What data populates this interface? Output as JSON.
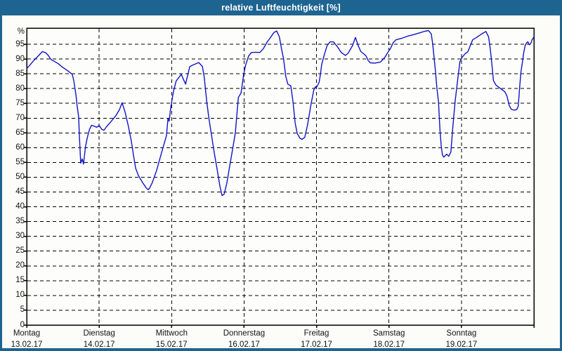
{
  "window": {
    "title": "relative Luftfeuchtigkeit [%]",
    "title_bar_color": "#1e6491",
    "border_color": "#1e6491",
    "content_background": "#fcfdf8"
  },
  "chart_data": {
    "type": "line",
    "title": "relative Luftfeuchtigkeit [%]",
    "xlabel": "",
    "ylabel": "%",
    "y_unit_label": "%",
    "ylim": [
      0,
      100
    ],
    "y_ticks": [
      0,
      5,
      10,
      15,
      20,
      25,
      30,
      35,
      40,
      45,
      50,
      55,
      60,
      65,
      70,
      75,
      80,
      85,
      90,
      95
    ],
    "x_unit": "hours_since_monday_00",
    "xlim_hours": [
      0,
      168
    ],
    "grid": "dashed-black",
    "legend_position": "none",
    "line_color": "#1212c8",
    "frame_color": "#000000",
    "plot_fill": "#fdfefb",
    "categories": [
      {
        "label": "Montag",
        "date": "13.02.17"
      },
      {
        "label": "Dienstag",
        "date": "14.02.17"
      },
      {
        "label": "Mittwoch",
        "date": "15.02.17"
      },
      {
        "label": "Donnerstag",
        "date": "16.02.17"
      },
      {
        "label": "Freitag",
        "date": "17.02.17"
      },
      {
        "label": "Samstag",
        "date": "18.02.17"
      },
      {
        "label": "Sonntag",
        "date": "19.02.17"
      }
    ],
    "series": [
      {
        "name": "relative Luftfeuchtigkeit",
        "points": [
          [
            0,
            86.7
          ],
          [
            1.6,
            88.6
          ],
          [
            2.8,
            90
          ],
          [
            4,
            91.2
          ],
          [
            5.2,
            92.5
          ],
          [
            6.3,
            92.1
          ],
          [
            7,
            91.4
          ],
          [
            8.1,
            89.8
          ],
          [
            9.3,
            89.1
          ],
          [
            10.5,
            88.4
          ],
          [
            11.6,
            87.4
          ],
          [
            12.8,
            86.6
          ],
          [
            14,
            85.7
          ],
          [
            15.1,
            84.8
          ],
          [
            15.6,
            82.7
          ],
          [
            16.3,
            77.9
          ],
          [
            16.7,
            74.1
          ],
          [
            17.2,
            70.5
          ],
          [
            17.5,
            63
          ],
          [
            17.9,
            54.8
          ],
          [
            18.4,
            56.2
          ],
          [
            18.8,
            54.4
          ],
          [
            19.5,
            60.5
          ],
          [
            20.1,
            63.5
          ],
          [
            20.8,
            66.2
          ],
          [
            21.5,
            67.6
          ],
          [
            22.3,
            67.3
          ],
          [
            23.2,
            66.9
          ],
          [
            24,
            67.5
          ],
          [
            24.9,
            66.2
          ],
          [
            25.6,
            65.9
          ],
          [
            26.5,
            67.2
          ],
          [
            27.9,
            68.8
          ],
          [
            29.5,
            70.8
          ],
          [
            30.7,
            72.8
          ],
          [
            31.6,
            75.2
          ],
          [
            32.6,
            72
          ],
          [
            33.7,
            67.2
          ],
          [
            34.7,
            62
          ],
          [
            35.4,
            57.3
          ],
          [
            36.1,
            53
          ],
          [
            37,
            50.6
          ],
          [
            38.4,
            48.2
          ],
          [
            39.5,
            46.5
          ],
          [
            40.2,
            45.8
          ],
          [
            40.7,
            46.3
          ],
          [
            41.6,
            48.2
          ],
          [
            43,
            52.2
          ],
          [
            44.7,
            58.4
          ],
          [
            46.3,
            64.1
          ],
          [
            46.8,
            69.8
          ],
          [
            47.2,
            69
          ],
          [
            47.7,
            73.5
          ],
          [
            48.6,
            79
          ],
          [
            49.5,
            82.5
          ],
          [
            51.2,
            84.8
          ],
          [
            52.6,
            81.5
          ],
          [
            54,
            87.4
          ],
          [
            55.1,
            88
          ],
          [
            57,
            88.8
          ],
          [
            58.2,
            87.5
          ],
          [
            58.8,
            83.9
          ],
          [
            59.6,
            76
          ],
          [
            60.3,
            70.4
          ],
          [
            61,
            65.6
          ],
          [
            62.1,
            58.4
          ],
          [
            63.1,
            52.5
          ],
          [
            64,
            47
          ],
          [
            64.7,
            43.8
          ],
          [
            65.4,
            44.3
          ],
          [
            66.3,
            48
          ],
          [
            67.2,
            53.5
          ],
          [
            68.2,
            59.5
          ],
          [
            69.1,
            65
          ],
          [
            69.6,
            71
          ],
          [
            70.1,
            77
          ],
          [
            71,
            78.5
          ],
          [
            71.9,
            85
          ],
          [
            72.6,
            88.2
          ],
          [
            73.5,
            91
          ],
          [
            74.4,
            92.2
          ],
          [
            76.1,
            92.3
          ],
          [
            77.2,
            92.2
          ],
          [
            78.4,
            93.5
          ],
          [
            79.6,
            95.7
          ],
          [
            80.7,
            97.2
          ],
          [
            81.9,
            99
          ],
          [
            82.8,
            99.5
          ],
          [
            83.7,
            97.5
          ],
          [
            84.4,
            93.5
          ],
          [
            85.1,
            90
          ],
          [
            85.8,
            84.2
          ],
          [
            86.5,
            81.5
          ],
          [
            87.5,
            80.9
          ],
          [
            88.2,
            75.5
          ],
          [
            88.9,
            68.4
          ],
          [
            89.6,
            64.8
          ],
          [
            90.5,
            63.2
          ],
          [
            91.2,
            62.8
          ],
          [
            92.1,
            63.5
          ],
          [
            93,
            67.6
          ],
          [
            94.2,
            74.8
          ],
          [
            95.1,
            79.5
          ],
          [
            95.6,
            80.6
          ],
          [
            95.9,
            80.2
          ],
          [
            96.3,
            81
          ],
          [
            96.9,
            82.2
          ],
          [
            97.3,
            85
          ],
          [
            97.7,
            88.1
          ],
          [
            98.6,
            91.5
          ],
          [
            99.5,
            94.5
          ],
          [
            100.5,
            95.8
          ],
          [
            101.6,
            95.8
          ],
          [
            102.8,
            94.3
          ],
          [
            104.2,
            92.2
          ],
          [
            105.6,
            91.2
          ],
          [
            106.5,
            92
          ],
          [
            107.9,
            94.5
          ],
          [
            108.9,
            97.3
          ],
          [
            109.8,
            94.5
          ],
          [
            110.7,
            92.5
          ],
          [
            111.6,
            91.8
          ],
          [
            112.4,
            91
          ],
          [
            113.1,
            89.5
          ],
          [
            113.8,
            88.7
          ],
          [
            115.4,
            88.6
          ],
          [
            117.2,
            89
          ],
          [
            118.6,
            90.5
          ],
          [
            119.6,
            92.2
          ],
          [
            120.5,
            93.6
          ],
          [
            121.4,
            95.5
          ],
          [
            122.3,
            96.5
          ],
          [
            124.2,
            97
          ],
          [
            126.1,
            97.7
          ],
          [
            128.4,
            98.3
          ],
          [
            130.3,
            98.9
          ],
          [
            131.9,
            99.4
          ],
          [
            133.1,
            99.6
          ],
          [
            134,
            98.5
          ],
          [
            134.5,
            95
          ],
          [
            134.9,
            91
          ],
          [
            135.4,
            85.8
          ],
          [
            135.9,
            80
          ],
          [
            136.4,
            75.5
          ],
          [
            136.9,
            66
          ],
          [
            137.3,
            60.5
          ],
          [
            137.7,
            57.5
          ],
          [
            138.2,
            56.8
          ],
          [
            139.1,
            57.8
          ],
          [
            139.8,
            57.1
          ],
          [
            140.5,
            58.5
          ],
          [
            141.2,
            67.6
          ],
          [
            141.9,
            75.5
          ],
          [
            142.8,
            83.4
          ],
          [
            143.5,
            89.1
          ],
          [
            144.2,
            90.5
          ],
          [
            145.2,
            91.8
          ],
          [
            146.1,
            92.4
          ],
          [
            147.7,
            96.5
          ],
          [
            148.9,
            97.2
          ],
          [
            150,
            98
          ],
          [
            151.2,
            98.8
          ],
          [
            152.1,
            99.3
          ],
          [
            153,
            97.5
          ],
          [
            153.4,
            94.5
          ],
          [
            153.8,
            91
          ],
          [
            154.2,
            87
          ],
          [
            154.6,
            82.7
          ],
          [
            155.4,
            81.2
          ],
          [
            156.3,
            80.5
          ],
          [
            157.5,
            79.6
          ],
          [
            158.4,
            78.9
          ],
          [
            159.1,
            77.4
          ],
          [
            159.8,
            74.3
          ],
          [
            160.5,
            73
          ],
          [
            161.4,
            72.7
          ],
          [
            162.3,
            72.9
          ],
          [
            162.8,
            74
          ],
          [
            163.3,
            80.7
          ],
          [
            163.7,
            85.5
          ],
          [
            164.2,
            89
          ],
          [
            164.6,
            92
          ],
          [
            165.1,
            94.5
          ],
          [
            165.6,
            95.5
          ],
          [
            166,
            95.8
          ],
          [
            166.5,
            94.8
          ],
          [
            167,
            95.3
          ],
          [
            167.4,
            96.5
          ],
          [
            168,
            97.4
          ]
        ]
      }
    ]
  }
}
